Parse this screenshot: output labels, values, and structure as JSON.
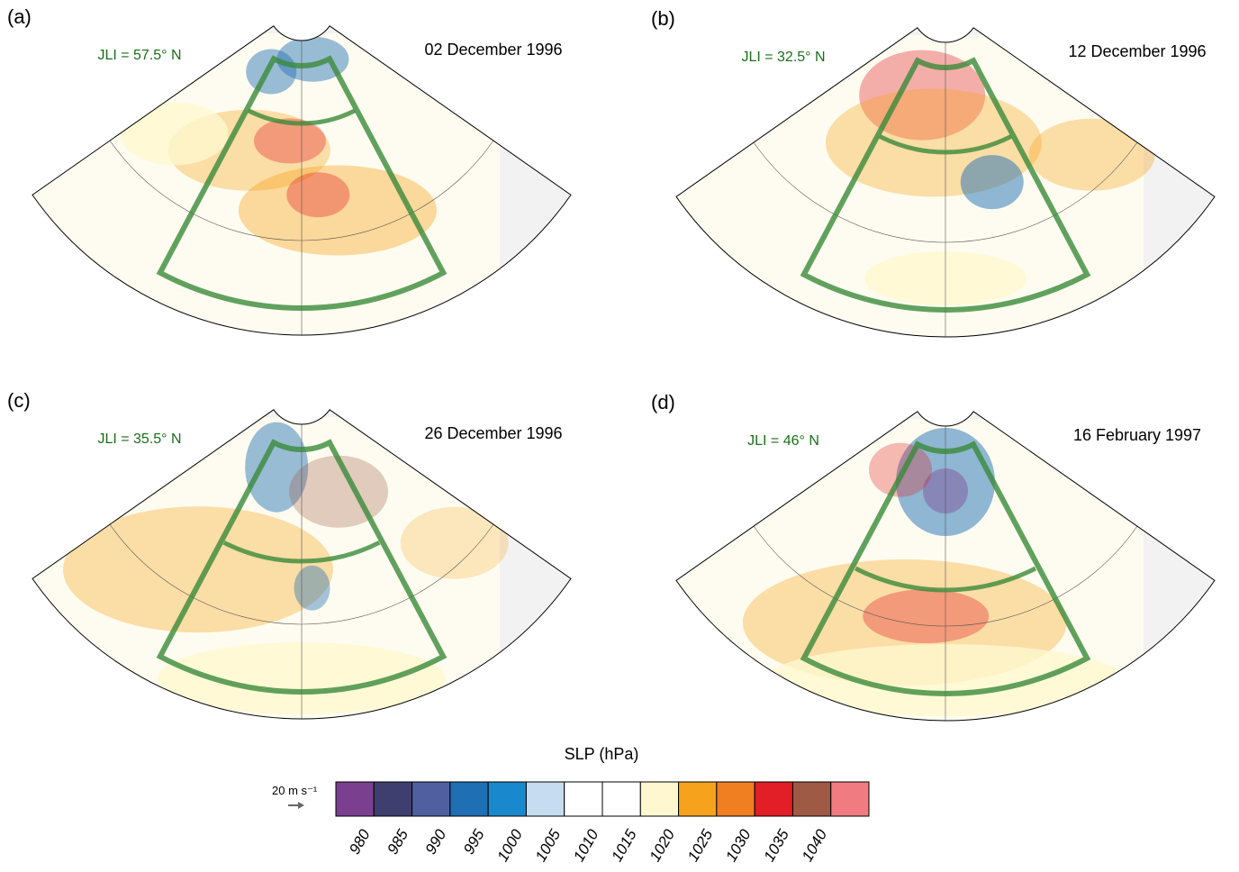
{
  "panels": [
    {
      "label": "(a)",
      "date": "02 December 1996",
      "jli": "JLI = 57.5° N"
    },
    {
      "label": "(b)",
      "date": "12 December 1996",
      "jli": "JLI = 32.5° N"
    },
    {
      "label": "(c)",
      "date": "26 December 1996",
      "jli": "JLI = 35.5° N"
    },
    {
      "label": "(d)",
      "date": "16 February 1997",
      "jli": "JLI = 46° N"
    }
  ],
  "colorbar": {
    "title": "SLP (hPa)",
    "vector_label": "20 m s⁻¹",
    "colors": [
      "#7b3f8f",
      "#3e3f6e",
      "#4f5fa0",
      "#1f6fb4",
      "#1a88cc",
      "#c6dcf0",
      "#ffffff",
      "#ffffff",
      "#fff7cf",
      "#f7a21c",
      "#f07f22",
      "#e21e26",
      "#9e5a44",
      "#f07b80"
    ],
    "ticks": [
      980,
      985,
      990,
      995,
      1000,
      1005,
      1010,
      1015,
      1020,
      1025,
      1030,
      1035,
      1040
    ]
  }
}
